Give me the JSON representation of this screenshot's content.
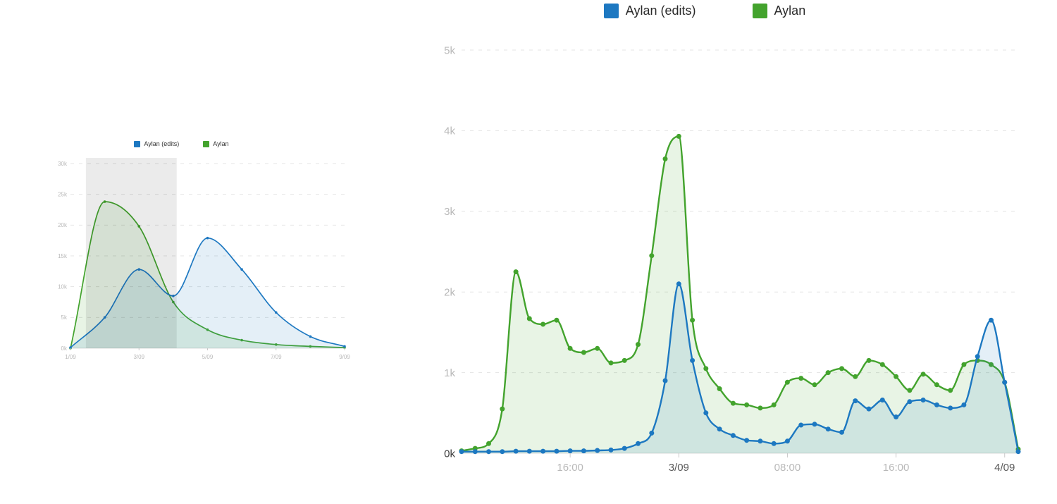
{
  "legend": {
    "items": [
      {
        "label": "Aylan (edits)",
        "color": "#1d78c1"
      },
      {
        "label": "Aylan",
        "color": "#43a32d"
      }
    ]
  },
  "chart_data": [
    {
      "id": "detail",
      "type": "area",
      "title": "",
      "grid": "dashed horizontal",
      "legend_position": "top",
      "ylim": [
        0,
        5000
      ],
      "yticks": [
        {
          "value": 0,
          "label": "0k",
          "strong": true
        },
        {
          "value": 1000,
          "label": "1k"
        },
        {
          "value": 2000,
          "label": "2k"
        },
        {
          "value": 3000,
          "label": "3k"
        },
        {
          "value": 4000,
          "label": "4k"
        },
        {
          "value": 5000,
          "label": "5k"
        }
      ],
      "xticks": [
        {
          "index": 8,
          "label": "16:00"
        },
        {
          "index": 16,
          "label": "3/09",
          "strong": true
        },
        {
          "index": 24,
          "label": "08:00"
        },
        {
          "index": 32,
          "label": "16:00"
        },
        {
          "index": 40,
          "label": "4/09",
          "strong": true
        }
      ],
      "series": [
        {
          "name": "Aylan",
          "color": "#43a32d",
          "values": [
            30,
            60,
            120,
            550,
            2250,
            1670,
            1600,
            1650,
            1300,
            1250,
            1300,
            1120,
            1150,
            1350,
            2450,
            3650,
            3930,
            1650,
            1050,
            800,
            620,
            600,
            560,
            600,
            880,
            930,
            850,
            1000,
            1050,
            950,
            1150,
            1100,
            950,
            780,
            980,
            850,
            780,
            1100,
            1150,
            1100,
            880,
            50
          ]
        },
        {
          "name": "Aylan (edits)",
          "color": "#1d78c1",
          "values": [
            20,
            20,
            20,
            20,
            25,
            25,
            25,
            25,
            30,
            30,
            35,
            40,
            60,
            120,
            250,
            900,
            2100,
            1150,
            500,
            300,
            220,
            160,
            150,
            120,
            150,
            350,
            360,
            300,
            260,
            650,
            550,
            660,
            450,
            640,
            660,
            600,
            560,
            600,
            1200,
            1650,
            880,
            20
          ]
        }
      ]
    },
    {
      "id": "overview",
      "type": "area",
      "title": "",
      "grid": "dashed horizontal",
      "legend_position": "top",
      "ylim": [
        0,
        30000
      ],
      "yticks": [
        {
          "value": 0,
          "label": "0k"
        },
        {
          "value": 5000,
          "label": "5k"
        },
        {
          "value": 10000,
          "label": "10k"
        },
        {
          "value": 15000,
          "label": "15k"
        },
        {
          "value": 20000,
          "label": "20k"
        },
        {
          "value": 25000,
          "label": "25k"
        },
        {
          "value": 30000,
          "label": "30k"
        }
      ],
      "xticks": [
        {
          "index": 0,
          "label": "1/09"
        },
        {
          "index": 2,
          "label": "3/09"
        },
        {
          "index": 4,
          "label": "5/09"
        },
        {
          "index": 6,
          "label": "7/09"
        },
        {
          "index": 8,
          "label": "9/09"
        }
      ],
      "series": [
        {
          "name": "Aylan",
          "color": "#43a32d",
          "values": [
            0,
            23800,
            19800,
            7500,
            3000,
            1300,
            600,
            300,
            100
          ]
        },
        {
          "name": "Aylan (edits)",
          "color": "#1d78c1",
          "values": [
            100,
            5000,
            12800,
            8500,
            17900,
            12800,
            5800,
            1900,
            300
          ]
        }
      ],
      "selection": {
        "from_index": 0.45,
        "to_index": 3.1
      }
    }
  ]
}
